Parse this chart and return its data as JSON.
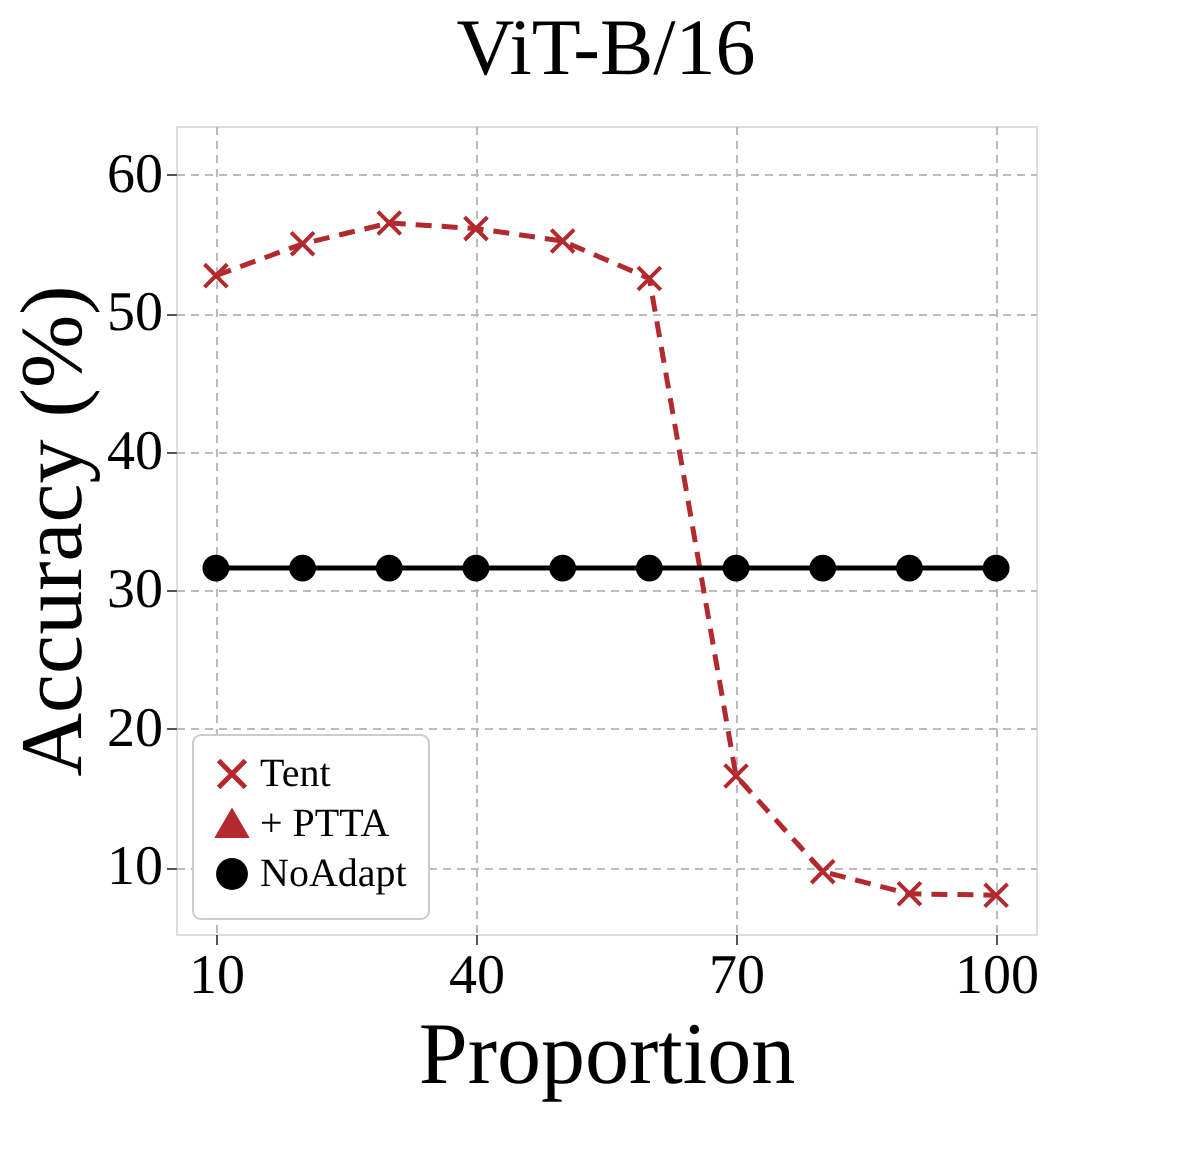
{
  "chart_data": {
    "type": "line",
    "title": "ViT-B/16",
    "xlabel": "Proportion",
    "ylabel": "Accuracy (%)",
    "x": [
      10,
      20,
      30,
      40,
      50,
      60,
      70,
      80,
      90,
      100
    ],
    "xlim": [
      5.4,
      104.6
    ],
    "xticks": [
      10,
      40,
      70,
      100
    ],
    "ylim": [
      5.2,
      63.5
    ],
    "yticks": [
      10,
      20,
      30,
      40,
      50,
      60
    ],
    "grid": true,
    "legend": "bottom left",
    "series": [
      {
        "name": "Tent",
        "color": "#b22a2e",
        "marker": "cross",
        "line_style": "dashed",
        "values": [
          52.7,
          55.0,
          56.5,
          56.1,
          55.2,
          52.5,
          16.6,
          9.7,
          8.1,
          8.0
        ]
      },
      {
        "name": "+ PTTA",
        "color": "#b22a2e",
        "marker": "triangle",
        "line_style": "solid",
        "values": [
          null,
          null,
          null,
          null,
          null,
          null,
          null,
          null,
          null,
          null
        ]
      },
      {
        "name": "NoAdapt",
        "color": "#000000",
        "marker": "circle",
        "line_style": "solid",
        "values": [
          31.6,
          31.6,
          31.6,
          31.6,
          31.6,
          31.6,
          31.6,
          31.6,
          31.6,
          31.6
        ]
      }
    ]
  }
}
